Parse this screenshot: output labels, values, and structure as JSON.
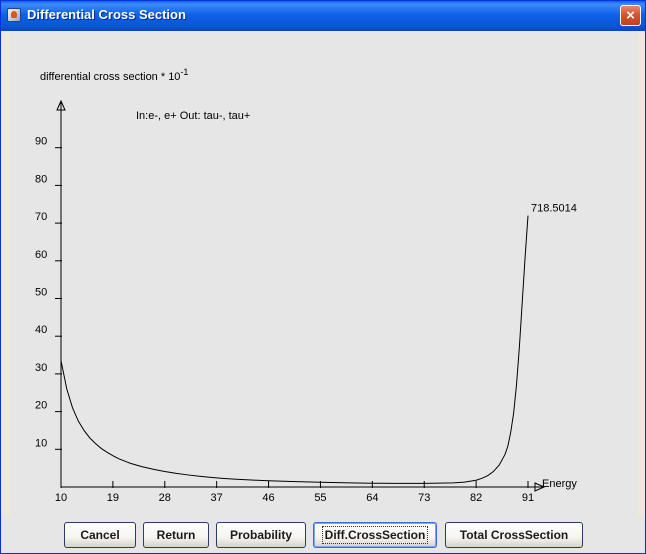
{
  "window": {
    "title": "Differential Cross Section",
    "close_label": "×",
    "icon": "java-cup-icon"
  },
  "colors": {
    "titlebar": "#0a55d6",
    "close": "#d6552f",
    "panel": "#e6e6e6",
    "frame": "#ece9d8",
    "ink": "#000000"
  },
  "buttons": {
    "cancel": "Cancel",
    "return": "Return",
    "probability": "Probability",
    "diff": "Diff.CrossSection",
    "total": "Total CrossSection"
  },
  "chart_data": {
    "type": "line",
    "ylabel": "differential cross section * 10",
    "ylabel_exponent": "-1",
    "xlabel": "Energy",
    "annotation": "In:e-, e+ Out: tau-, tau+",
    "peak_label": "718.5014",
    "x_ticks": [
      "10",
      "19",
      "28",
      "37",
      "46",
      "55",
      "64",
      "73",
      "82",
      "91"
    ],
    "y_ticks": [
      "10",
      "20",
      "30",
      "40",
      "50",
      "60",
      "70",
      "80",
      "90"
    ],
    "xlim": [
      10,
      91
    ],
    "ylim": [
      0,
      90
    ],
    "grid": false,
    "series": [
      {
        "x": [
          10,
          11,
          12,
          13,
          14,
          15,
          16,
          17,
          18,
          19,
          20,
          22,
          24,
          26,
          28,
          30,
          32,
          34,
          36,
          38,
          40,
          43,
          46,
          50,
          55,
          60,
          64,
          68,
          73,
          78,
          80,
          82,
          83,
          84,
          85,
          86,
          87,
          87.5,
          88,
          88.5,
          89,
          89.5,
          90,
          90.5,
          91
        ],
        "y": [
          33.5,
          26,
          21,
          17.5,
          15,
          13,
          11.5,
          10.2,
          9.2,
          8.3,
          7.5,
          6.3,
          5.4,
          4.7,
          4.1,
          3.6,
          3.2,
          2.85,
          2.55,
          2.3,
          2.1,
          1.85,
          1.65,
          1.45,
          1.25,
          1.1,
          1.0,
          0.95,
          0.95,
          1.1,
          1.3,
          1.8,
          2.3,
          3.0,
          4.1,
          5.8,
          8.6,
          10.8,
          14.5,
          19.5,
          27,
          37,
          49,
          61,
          72
        ]
      }
    ]
  }
}
